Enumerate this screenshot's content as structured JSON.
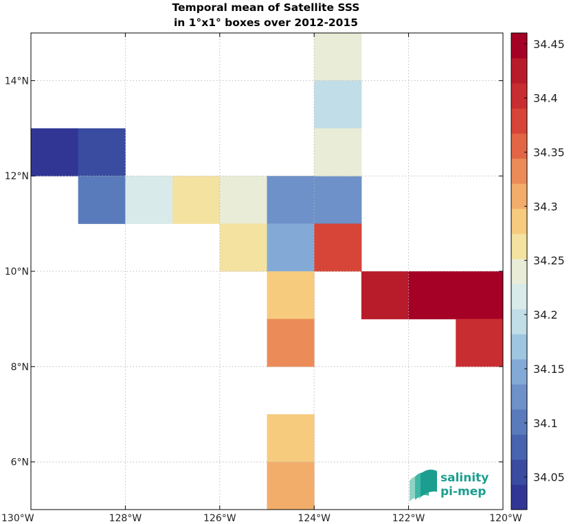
{
  "chart_data": {
    "type": "heatmap",
    "title_lines": [
      "Temporal mean of Satellite SSS",
      "in 1°x1° boxes over 2012-2015"
    ],
    "xlim": [
      -130,
      -120
    ],
    "ylim": [
      5,
      15
    ],
    "x_tick_values": [
      -130,
      -128,
      -126,
      -124,
      -122,
      -120
    ],
    "x_tick_labels": [
      "130°W",
      "128°W",
      "126°W",
      "124°W",
      "122°W",
      "120°W"
    ],
    "y_tick_values": [
      6,
      8,
      10,
      12,
      14
    ],
    "y_tick_labels": [
      "6°N",
      "8°N",
      "10°N",
      "12°N",
      "14°N"
    ],
    "grid": true,
    "cells": [
      {
        "lon": -130,
        "lat": 12,
        "value": 34.03
      },
      {
        "lon": -129,
        "lat": 12,
        "value": 34.06
      },
      {
        "lon": -129,
        "lat": 11,
        "value": 34.11
      },
      {
        "lon": -128,
        "lat": 11,
        "value": 34.21
      },
      {
        "lon": -127,
        "lat": 11,
        "value": 34.27
      },
      {
        "lon": -126,
        "lat": 11,
        "value": 34.25
      },
      {
        "lon": -125,
        "lat": 11,
        "value": 34.12
      },
      {
        "lon": -124,
        "lat": 11,
        "value": 34.12
      },
      {
        "lon": -126,
        "lat": 10,
        "value": 34.27
      },
      {
        "lon": -125,
        "lat": 10,
        "value": 34.15
      },
      {
        "lon": -124,
        "lat": 10,
        "value": 34.37
      },
      {
        "lon": -125,
        "lat": 9,
        "value": 34.29
      },
      {
        "lon": -125,
        "lat": 8,
        "value": 34.33
      },
      {
        "lon": -123,
        "lat": 9,
        "value": 34.42
      },
      {
        "lon": -122,
        "lat": 9,
        "value": 34.44
      },
      {
        "lon": -121,
        "lat": 9,
        "value": 34.44
      },
      {
        "lon": -121,
        "lat": 8,
        "value": 34.4
      },
      {
        "lon": -124,
        "lat": 14,
        "value": 34.23
      },
      {
        "lon": -124,
        "lat": 13,
        "value": 34.2
      },
      {
        "lon": -124,
        "lat": 12,
        "value": 34.23
      },
      {
        "lon": -125,
        "lat": 6,
        "value": 34.29
      },
      {
        "lon": -125,
        "lat": 5,
        "value": 34.32
      }
    ],
    "colorbar": {
      "vmin": 34.02,
      "vmax": 34.46,
      "levels": [
        "#313695",
        "#3a4ca0",
        "#4864ae",
        "#5a7bbb",
        "#6d91c8",
        "#83aad6",
        "#9ec6e0",
        "#c0dde8",
        "#d8eae9",
        "#e9ecd6",
        "#f4e2a0",
        "#f7cb7e",
        "#f2ad6b",
        "#eb8c58",
        "#e26646",
        "#d64537",
        "#c72d31",
        "#b81c2b",
        "#a50026"
      ],
      "tick_values": [
        34.05,
        34.1,
        34.15,
        34.2,
        34.25,
        34.3,
        34.35,
        34.4,
        34.45
      ],
      "tick_labels": [
        "34.05",
        "34.1",
        "34.15",
        "34.2",
        "34.25",
        "34.3",
        "34.35",
        "34.4",
        "34.45"
      ]
    }
  },
  "logo": {
    "line1": "salinity",
    "line2": "pi-mep"
  }
}
